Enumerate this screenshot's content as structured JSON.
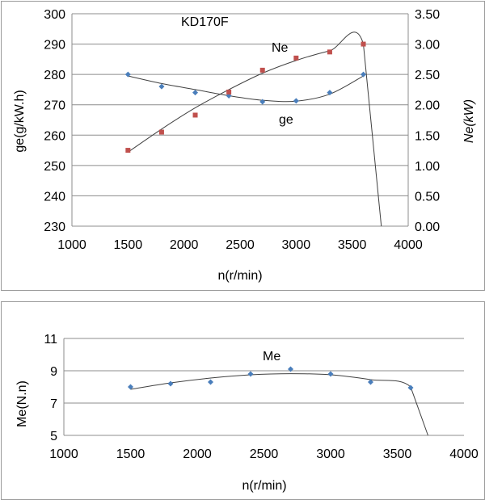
{
  "chart_data": [
    {
      "type": "scatter",
      "title": "KD170F",
      "xlabel": "n(r/min)",
      "ylabel": "ge(g/kW.h)",
      "y2label": "Ne(kW)",
      "xlim": [
        1000,
        4000
      ],
      "xticks": [
        "1000",
        "1500",
        "2000",
        "2500",
        "3000",
        "3500",
        "4000"
      ],
      "ylim": [
        230,
        300
      ],
      "yticks": [
        "230",
        "240",
        "250",
        "260",
        "270",
        "280",
        "290",
        "300"
      ],
      "y2lim": [
        0,
        3.5
      ],
      "y2ticks": [
        "0.00",
        "0.50",
        "1.00",
        "1.50",
        "2.00",
        "2.50",
        "3.00",
        "3.50"
      ],
      "grid": "horizontal",
      "series": [
        {
          "name": "ge",
          "axis": "left",
          "marker": "diamond",
          "color": "#4a7ebb",
          "x": [
            1500,
            1800,
            2100,
            2400,
            2700,
            3000,
            3300,
            3600
          ],
          "y": [
            280,
            276,
            274,
            273,
            271,
            271.3,
            274,
            280
          ],
          "trend_x": [
            1500,
            1800,
            2100,
            2400,
            2700,
            3000,
            3300,
            3600
          ],
          "trend_y": [
            279.5,
            277,
            275,
            273,
            271.5,
            271.2,
            273.5,
            279.5
          ]
        },
        {
          "name": "Ne",
          "axis": "right",
          "marker": "square",
          "color": "#c0504d",
          "x": [
            1500,
            1800,
            2100,
            2400,
            2700,
            3000,
            3300,
            3600
          ],
          "y": [
            1.25,
            1.55,
            1.83,
            2.21,
            2.57,
            2.77,
            2.87,
            3.0
          ],
          "trend_x": [
            1500,
            1800,
            2100,
            2400,
            2700,
            3000,
            3300,
            3600,
            3760
          ],
          "trend_y": [
            1.22,
            1.6,
            1.95,
            2.25,
            2.52,
            2.73,
            2.89,
            3.0,
            0.0
          ]
        }
      ]
    },
    {
      "type": "scatter",
      "xlabel": "n(r/min)",
      "ylabel": "Me(N.n)",
      "xlim": [
        1000,
        4000
      ],
      "xticks": [
        "1000",
        "1500",
        "2000",
        "2500",
        "3000",
        "3500",
        "4000"
      ],
      "ylim": [
        5,
        11
      ],
      "yticks": [
        "5",
        "7",
        "9",
        "11"
      ],
      "grid": "horizontal",
      "series": [
        {
          "name": "Me",
          "marker": "diamond",
          "color": "#4a7ebb",
          "x": [
            1500,
            1800,
            2100,
            2400,
            2700,
            3000,
            3300,
            3600
          ],
          "y": [
            8.0,
            8.2,
            8.3,
            8.8,
            9.1,
            8.8,
            8.3,
            7.95
          ],
          "trend_x": [
            1500,
            1800,
            2100,
            2400,
            2700,
            3000,
            3300,
            3600,
            3730
          ],
          "trend_y": [
            7.85,
            8.25,
            8.55,
            8.75,
            8.82,
            8.75,
            8.45,
            8.0,
            5.0
          ]
        }
      ]
    }
  ]
}
